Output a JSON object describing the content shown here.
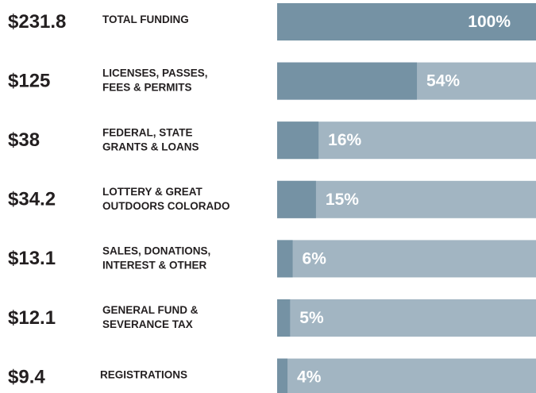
{
  "chart_data": {
    "type": "bar",
    "categories": [
      [
        "TOTAL FUNDING"
      ],
      [
        "LICENSES, PASSES,",
        "FEES & PERMITS"
      ],
      [
        "FEDERAL, STATE",
        "GRANTS & LOANS"
      ],
      [
        "LOTTERY & GREAT",
        "OUTDOORS COLORADO"
      ],
      [
        "SALES, DONATIONS,",
        "INTEREST & OTHER"
      ],
      [
        "GENERAL FUND &",
        "SEVERANCE TAX"
      ],
      [
        "REGISTRATIONS"
      ]
    ],
    "amounts": [
      "$231.8",
      "$125",
      "$38",
      "$34.2",
      "$13.1",
      "$12.1",
      "$9.4"
    ],
    "values": [
      100,
      54,
      16,
      15,
      6,
      5,
      4
    ],
    "value_labels": [
      "100%",
      "54%",
      "16%",
      "15%",
      "6%",
      "5%",
      "4%"
    ],
    "xlim": [
      0,
      100
    ],
    "color": "#7592a4",
    "track_color": "#a2b5c2"
  }
}
